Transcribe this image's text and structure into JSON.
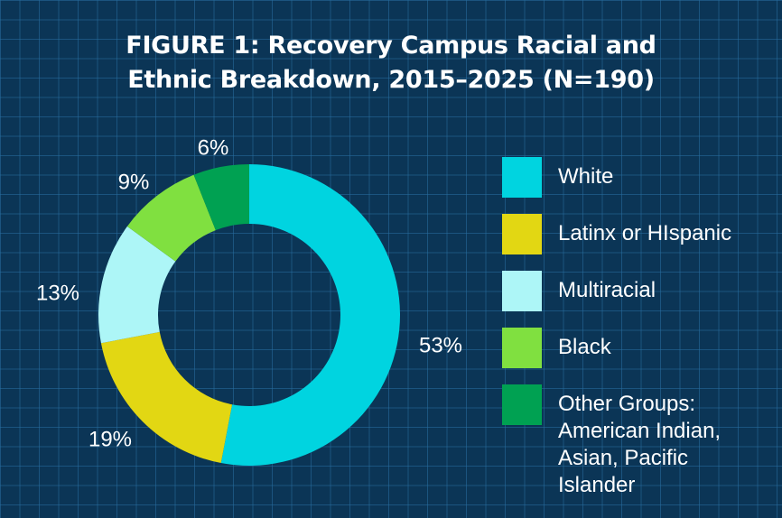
{
  "title_lines": [
    "FIGURE 1: Recovery Campus Racial and",
    "Ethnic Breakdown, 2015–2025 (N=190)"
  ],
  "chart_data": {
    "type": "pie",
    "title": "FIGURE 1: Recovery Campus Racial and Ethnic Breakdown, 2015–2025 (N=190)",
    "categories": [
      "White",
      "Latinx or HIspanic",
      "Multiracial",
      "Black",
      "Other Groups: American Indian, Asian, Pacific Islander"
    ],
    "values": [
      53,
      19,
      13,
      9,
      6
    ],
    "labels": [
      "53%",
      "19%",
      "13%",
      "9%",
      "6%"
    ],
    "colors": [
      "#00d4e0",
      "#e2d713",
      "#adf6f7",
      "#80e040",
      "#00a152"
    ],
    "donut": true,
    "legend_position": "right"
  },
  "legend": [
    {
      "label": "White",
      "color": "#00d4e0"
    },
    {
      "label": "Latinx or HIspanic",
      "color": "#e2d713"
    },
    {
      "label": "Multiracial",
      "color": "#adf6f7"
    },
    {
      "label": "Black",
      "color": "#80e040"
    },
    {
      "label": "Other Groups:\nAmerican Indian,\nAsian, Pacific\nIslander",
      "color": "#00a152"
    }
  ]
}
